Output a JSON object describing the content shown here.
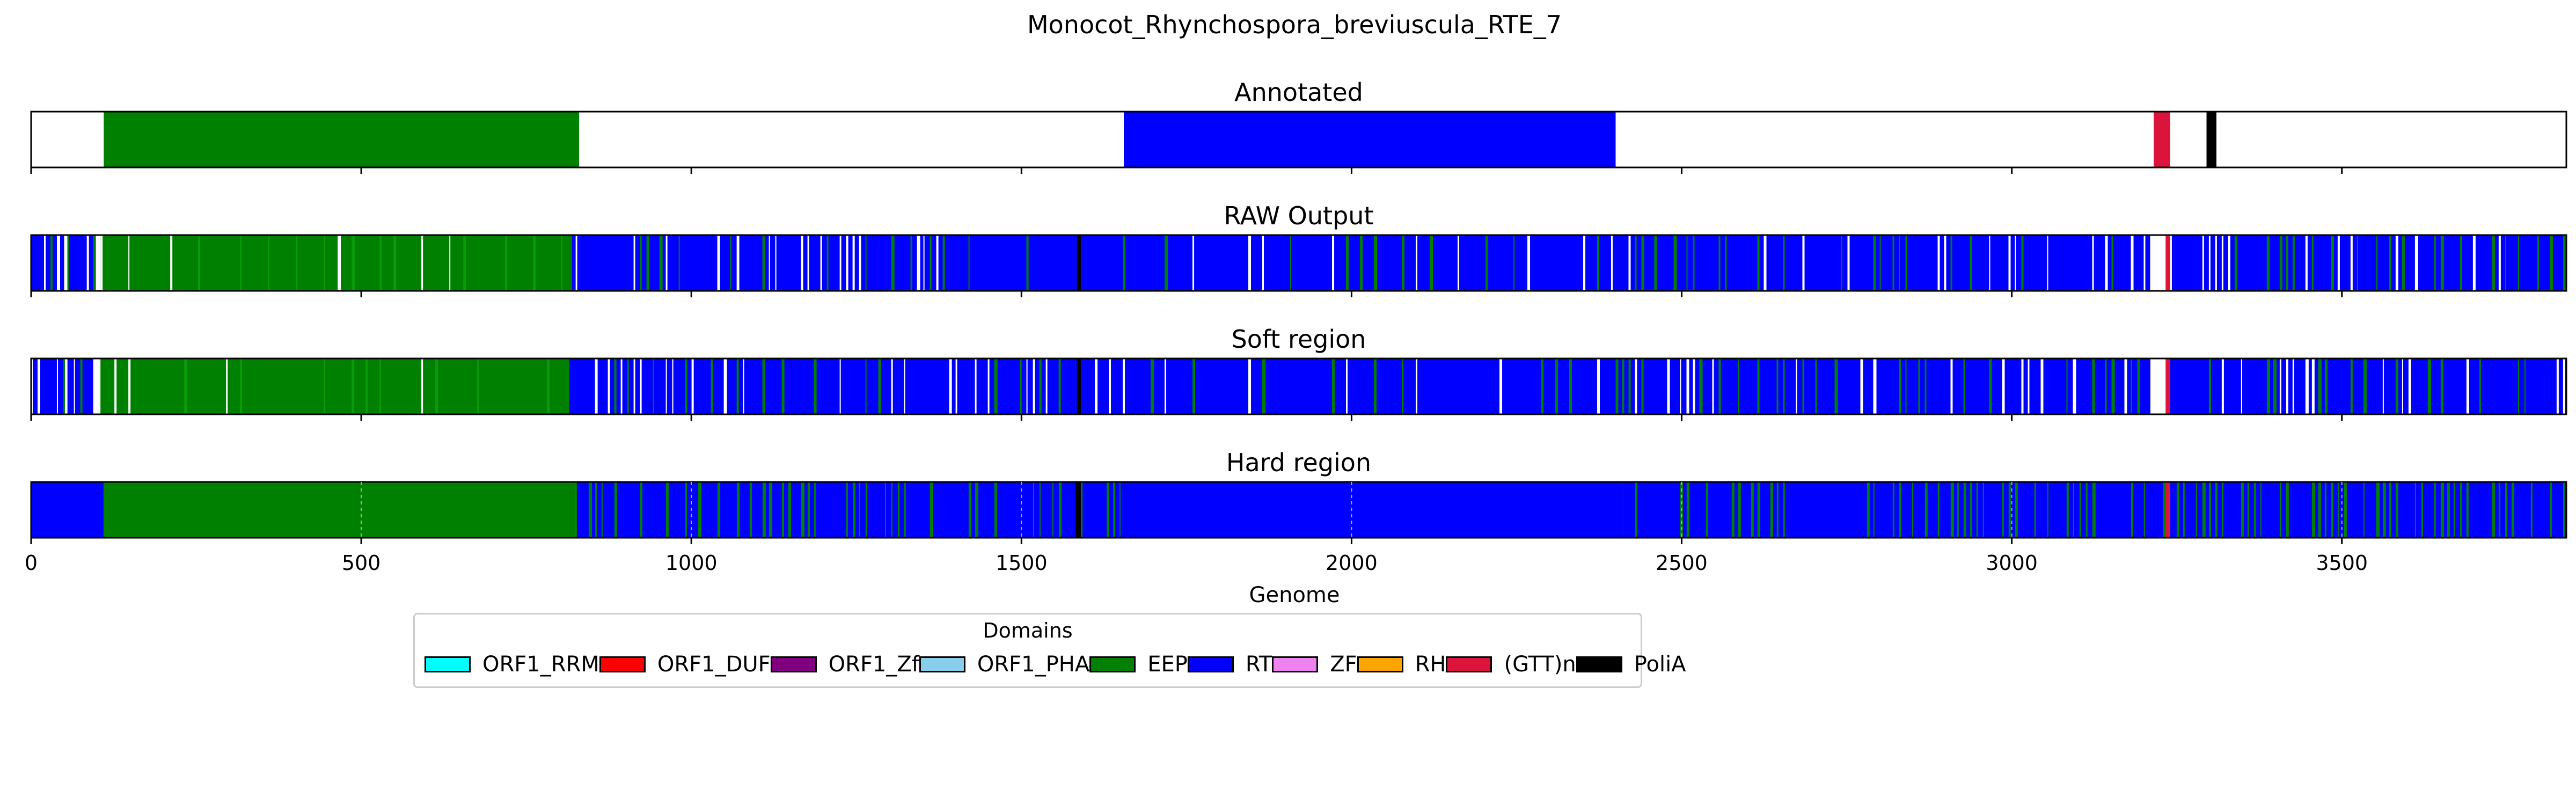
{
  "chart_data": {
    "type": "bar",
    "title": "Monocot_Rhynchospora_breviuscula_RTE_7",
    "xlabel": "Genome",
    "xlim": [
      0,
      3840
    ],
    "xticks": [
      0,
      500,
      1000,
      1500,
      2000,
      2500,
      3000,
      3500
    ],
    "legend": {
      "title": "Domains",
      "placement": "bottom-center",
      "items": [
        {
          "name": "ORF1_RRM",
          "color": "#00ffff"
        },
        {
          "name": "ORF1_DUF",
          "color": "#ff0000"
        },
        {
          "name": "ORF1_Zf",
          "color": "#800080"
        },
        {
          "name": "ORF1_PHA",
          "color": "#87ceeb"
        },
        {
          "name": "EEP",
          "color": "#008000"
        },
        {
          "name": "RT",
          "color": "#0000ff"
        },
        {
          "name": "ZF",
          "color": "#ee82ee"
        },
        {
          "name": "RH",
          "color": "#ffa500"
        },
        {
          "name": "(GTT)n",
          "color": "#dc143c"
        },
        {
          "name": "PoliA",
          "color": "#000000"
        }
      ]
    },
    "panels": [
      {
        "title": "Annotated",
        "segments": [
          {
            "domain": "EEP",
            "start": 110,
            "end": 830
          },
          {
            "domain": "RT",
            "start": 1655,
            "end": 2400
          },
          {
            "domain": "(GTT)n",
            "start": 3215,
            "end": 3240
          },
          {
            "domain": "PoliA",
            "start": 3295,
            "end": 3310
          }
        ]
      },
      {
        "title": "RAW Output",
        "segments": [
          {
            "domain": "RT",
            "start": 0,
            "end": 50,
            "pattern": "dense"
          },
          {
            "domain": "RT",
            "start": 55,
            "end": 95,
            "pattern": "dense"
          },
          {
            "domain": "EEP",
            "start": 105,
            "end": 815,
            "pattern": "sparse"
          },
          {
            "domain": "RT",
            "start": 815,
            "end": 1590,
            "pattern": "dense"
          },
          {
            "domain": "PoliA",
            "start": 1584,
            "end": 1590
          },
          {
            "domain": "RT",
            "start": 1590,
            "end": 2400,
            "pattern": "sparse"
          },
          {
            "domain": "RT",
            "start": 2400,
            "end": 3210,
            "pattern": "dense"
          },
          {
            "domain": "(GTT)n",
            "start": 3233,
            "end": 3240
          },
          {
            "domain": "PoliA",
            "start": 3298,
            "end": 3303
          },
          {
            "domain": "RT",
            "start": 3240,
            "end": 3840,
            "pattern": "dense"
          }
        ]
      },
      {
        "title": "Soft region",
        "segments": [
          {
            "domain": "RT",
            "start": 0,
            "end": 50,
            "pattern": "dense"
          },
          {
            "domain": "RT",
            "start": 55,
            "end": 95,
            "pattern": "dense"
          },
          {
            "domain": "EEP",
            "start": 105,
            "end": 815,
            "pattern": "sparse"
          },
          {
            "domain": "RT",
            "start": 815,
            "end": 1590,
            "pattern": "dense"
          },
          {
            "domain": "PoliA",
            "start": 1584,
            "end": 1590
          },
          {
            "domain": "RT",
            "start": 1590,
            "end": 2400,
            "pattern": "sparse"
          },
          {
            "domain": "RT",
            "start": 2400,
            "end": 3210,
            "pattern": "dense"
          },
          {
            "domain": "(GTT)n",
            "start": 3233,
            "end": 3240
          },
          {
            "domain": "PoliA",
            "start": 3298,
            "end": 3303
          },
          {
            "domain": "RT",
            "start": 3240,
            "end": 3840,
            "pattern": "dense"
          }
        ]
      },
      {
        "title": "Hard region",
        "segments": [
          {
            "domain": "RT",
            "start": 0,
            "end": 110,
            "pattern": "solid"
          },
          {
            "domain": "EEP",
            "start": 110,
            "end": 825,
            "pattern": "solid"
          },
          {
            "domain": "RT",
            "start": 825,
            "end": 1590,
            "pattern": "striped"
          },
          {
            "domain": "PoliA",
            "start": 1582,
            "end": 1590
          },
          {
            "domain": "RT",
            "start": 1590,
            "end": 1650,
            "pattern": "striped"
          },
          {
            "domain": "RT",
            "start": 1650,
            "end": 2410,
            "pattern": "solid"
          },
          {
            "domain": "RT",
            "start": 2410,
            "end": 3230,
            "pattern": "striped"
          },
          {
            "domain": "(GTT)n",
            "start": 3233,
            "end": 3240
          },
          {
            "domain": "PoliA",
            "start": 3296,
            "end": 3303
          },
          {
            "domain": "RT",
            "start": 3240,
            "end": 3840,
            "pattern": "striped"
          }
        ]
      }
    ]
  }
}
